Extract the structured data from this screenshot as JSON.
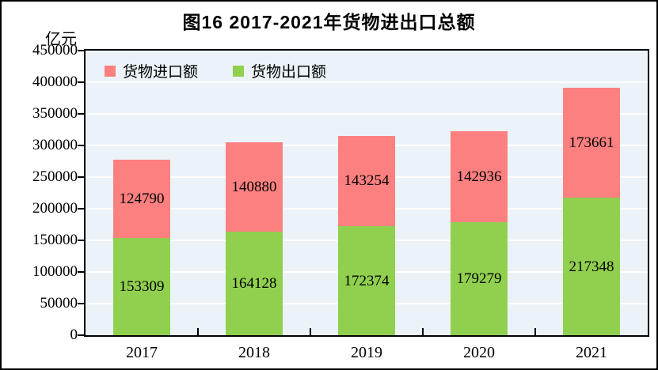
{
  "title": "图16  2017-2021年货物进出口总额",
  "y_axis_unit": "亿元",
  "colors": {
    "imports": "#FC8080",
    "exports": "#90D04E",
    "plot_background": "#EBF3F8",
    "gridline": "#FFFFFF",
    "axis": "#000000",
    "text": "#000000"
  },
  "legend": [
    {
      "id": "imports",
      "label": "货物进口额",
      "color": "#FC8080"
    },
    {
      "id": "exports",
      "label": "货物出口额",
      "color": "#90D04E"
    }
  ],
  "chart_data": {
    "type": "bar",
    "stacked": true,
    "title": "图16  2017-2021年货物进出口总额",
    "ylabel": "亿元",
    "categories": [
      "2017",
      "2018",
      "2019",
      "2020",
      "2021"
    ],
    "series": [
      {
        "id": "exports",
        "name": "货物出口额",
        "color": "#90D04E",
        "values": [
          153309,
          164128,
          172374,
          179279,
          217348
        ]
      },
      {
        "id": "imports",
        "name": "货物进口额",
        "color": "#FC8080",
        "values": [
          124790,
          140880,
          143254,
          142936,
          173661
        ]
      }
    ],
    "ylim": [
      0,
      450000
    ],
    "ytick_step": 50000,
    "ytick_labels": [
      "0",
      "50000",
      "100000",
      "150000",
      "200000",
      "250000",
      "300000",
      "350000",
      "400000",
      "450000"
    ],
    "grid": true,
    "gridline_orientation": "horizontal",
    "legend_position": "top-left-inside",
    "value_labels": "centered-in-segment"
  }
}
